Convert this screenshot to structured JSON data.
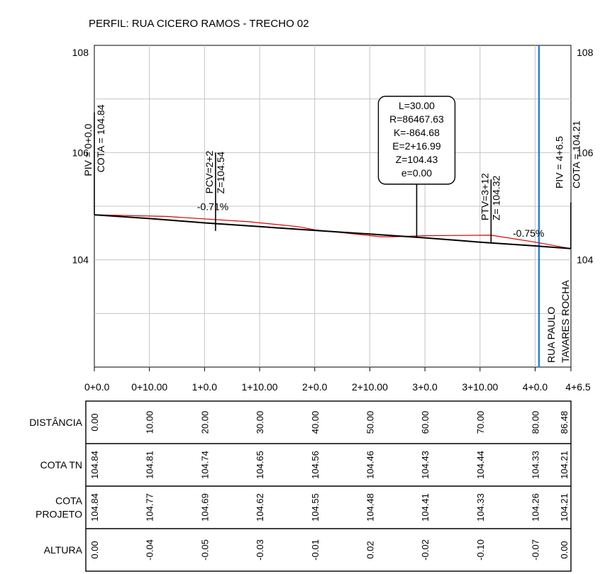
{
  "chart_data": {
    "type": "line",
    "title": "PERFIL: RUA CICERO RAMOS - TRECHO 02",
    "xlim": [
      0,
      86.5
    ],
    "ylim": [
      102,
      108
    ],
    "y_tick_labels": [
      "108",
      "106",
      "104"
    ],
    "x_tick_labels": [
      "0+0.0",
      "0+10.00",
      "1+0.0",
      "1+10.00",
      "2+0.0",
      "2+10.00",
      "3+0.0",
      "3+10.00",
      "4+0.0",
      "4+6.5"
    ],
    "grid": true,
    "series": [
      {
        "role": "terrain",
        "color": "#e00000",
        "x": [
          0,
          13,
          28,
          37,
          40,
          52,
          54,
          60,
          72,
          80,
          86.48
        ],
        "y": [
          104.84,
          104.81,
          104.71,
          104.62,
          104.56,
          104.43,
          104.43,
          104.45,
          104.46,
          104.33,
          104.21
        ]
      },
      {
        "role": "project",
        "color": "#000000",
        "x": [
          0,
          10,
          20,
          30,
          40,
          50,
          60,
          70,
          80,
          86.48
        ],
        "y": [
          104.84,
          104.77,
          104.69,
          104.62,
          104.55,
          104.48,
          104.41,
          104.33,
          104.26,
          104.21
        ]
      }
    ],
    "grade_labels": [
      {
        "text": "-0.71%",
        "x": 21.5,
        "y": 104.93
      },
      {
        "text": "-0.75%",
        "x": 78.8,
        "y": 104.43
      }
    ],
    "vertical_markers": [
      {
        "x": 0,
        "y_base": 104.84,
        "y_top": 106.75,
        "label": "PIV = 0+0.0",
        "color": "#000000"
      },
      {
        "x": 22,
        "y_base": 104.54,
        "y_top": 106.0,
        "label": "PCV=2+2",
        "label2": "Z=104.54",
        "color": "#000000"
      },
      {
        "x": 58.5,
        "y_base": 104.43,
        "y_top": 105.5,
        "label": "",
        "color": "#000000"
      },
      {
        "x": 72,
        "y_base": 104.32,
        "y_top": 105.5,
        "label": "PTV=3+12",
        "label2": "Z= 104.32",
        "color": "#000000"
      },
      {
        "x": 86.48,
        "y_base": 104.21,
        "y_top": 105.07,
        "label": "",
        "color": "#000000"
      }
    ],
    "side_labels": [
      {
        "text": "COTA = 104.84",
        "x": 1.3,
        "y": 106.0
      },
      {
        "text": "PIV = 4+6.5",
        "x": 84.5,
        "y": 105.7
      },
      {
        "text": "COTA = 104.21",
        "x": 87.6,
        "y": 105.7
      }
    ],
    "crossing": {
      "x": 80.7,
      "color": "#2b7fd4",
      "label_lines": [
        "RUA PAULO",
        "TAVARES ROCHA"
      ]
    },
    "curve_box": {
      "center_x": 58.5,
      "top_y": 107.05,
      "lines": [
        "L=30.00",
        "R=86467.63",
        "K=-864.68",
        "E=2+16.99",
        "Z=104.43",
        "e=0.00"
      ]
    },
    "table": {
      "rows": [
        {
          "label_lines": [
            "DISTÂNCIA"
          ],
          "values": [
            "0.00",
            "10.00",
            "20.00",
            "30.00",
            "40.00",
            "50.00",
            "60.00",
            "70.00",
            "80.00",
            "86.48"
          ]
        },
        {
          "label_lines": [
            "COTA TN"
          ],
          "values": [
            "104.84",
            "104.81",
            "104.74",
            "104.65",
            "104.56",
            "104.46",
            "104.43",
            "104.44",
            "104.33",
            "104.21"
          ]
        },
        {
          "label_lines": [
            "COTA",
            "PROJETO"
          ],
          "values": [
            "104.84",
            "104.77",
            "104.69",
            "104.62",
            "104.55",
            "104.48",
            "104.41",
            "104.33",
            "104.26",
            "104.21"
          ]
        },
        {
          "label_lines": [
            "ALTURA"
          ],
          "values": [
            "0.00",
            "-0.04",
            "-0.05",
            "-0.03",
            "-0.01",
            "0.02",
            "-0.02",
            "-0.10",
            "-0.07",
            "0.00"
          ]
        }
      ]
    }
  }
}
